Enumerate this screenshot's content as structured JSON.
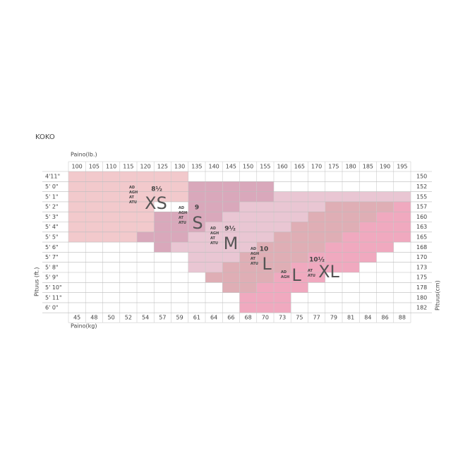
{
  "title": "KOKO",
  "weight_lb_label": "Paino(lb.)",
  "weight_kg_label": "Paino(kg)",
  "height_ft_label": "Pituus (ft.)",
  "height_cm_label": "Pituus(cm)",
  "weight_lb": [
    "100",
    "105",
    "110",
    "115",
    "120",
    "125",
    "130",
    "135",
    "140",
    "145",
    "150",
    "155",
    "160",
    "165",
    "170",
    "175",
    "180",
    "185",
    "190",
    "195"
  ],
  "weight_kg": [
    "45",
    "48",
    "50",
    "52",
    "54",
    "57",
    "59",
    "61",
    "64",
    "66",
    "68",
    "70",
    "73",
    "75",
    "77",
    "79",
    "81",
    "84",
    "86",
    "88"
  ],
  "height_ft": [
    "4'11\"",
    "5' 0\"",
    "5' 1\"",
    "5' 2\"",
    "5' 3\"",
    "5' 4\"",
    "5' 5\"",
    "5' 6\"",
    "5' 7\"",
    "5' 8\"",
    "5' 9\"",
    "5' 10\"",
    "5' 11\"",
    "6' 0\""
  ],
  "height_cm": [
    "150",
    "152",
    "155",
    "157",
    "160",
    "163",
    "165",
    "168",
    "170",
    "173",
    "175",
    "178",
    "180",
    "182"
  ],
  "sizes": [
    {
      "size": "XS",
      "number": "8½",
      "codes": [
        "AD",
        "AGH",
        "AT",
        "ATU"
      ]
    },
    {
      "size": "S",
      "number": "9",
      "codes": [
        "AD",
        "AGH",
        "AT",
        "ATU"
      ]
    },
    {
      "size": "M",
      "number": "9½",
      "codes": [
        "AD",
        "AGH",
        "AT",
        "ATU"
      ]
    },
    {
      "size": "L",
      "number": "10",
      "codes": [
        "AD",
        "AGH",
        "AT",
        "ATU"
      ]
    },
    {
      "size": "L",
      "codes": [
        "AD",
        "AGH"
      ]
    },
    {
      "size": "XL",
      "number": "10½",
      "codes": [
        "AT",
        "ATU"
      ]
    }
  ]
}
